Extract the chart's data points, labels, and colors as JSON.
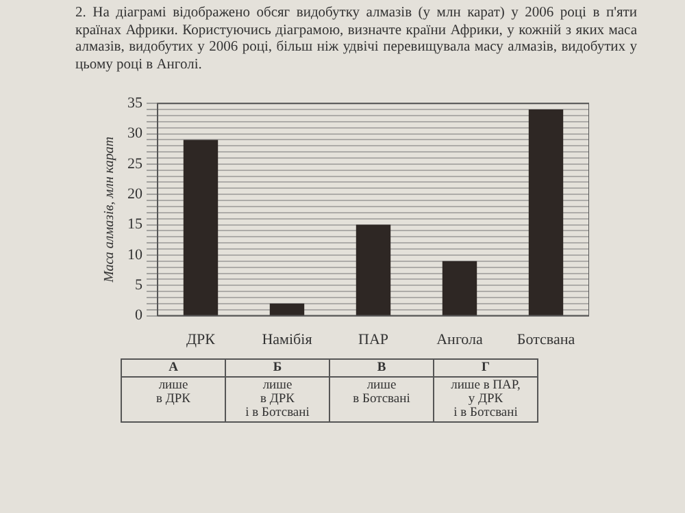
{
  "chart_data": {
    "type": "bar",
    "title": "2. На діаграмі відображено обсяг видобутку алмазів (у млн карат) у 2006 році в п'яти країнах Африки. Користуючись діаграмою, визначте країни Африки, у кожній з яких маса алмазів, видобутих у 2006 році, більш ніж удвічі перевищувала масу алмазів, видобутих у цьому році в Анголі.",
    "ylabel": "Маса алмазів, млн карат",
    "categories": [
      "ДРК",
      "Намібія",
      "ПАР",
      "Ангола",
      "Ботсвана"
    ],
    "values": [
      29,
      2,
      15,
      9,
      34
    ],
    "color": "#2e2724",
    "ylim": [
      0,
      35
    ],
    "yticks": [
      0,
      {
        "value": 1,
        "label": null
      },
      {
        "value": 2,
        "label": null
      },
      {
        "value": 3,
        "label": null
      },
      {
        "value": 4,
        "label": null
      },
      5,
      {
        "value": 6,
        "label": null
      },
      {
        "value": 7,
        "label": null
      },
      {
        "value": 8,
        "label": null
      },
      {
        "value": 9,
        "label": null
      },
      10,
      {
        "value": 11,
        "label": null
      },
      {
        "value": 12,
        "label": null
      },
      {
        "value": 13,
        "label": null
      },
      {
        "value": 14,
        "label": null
      },
      15,
      {
        "value": 16,
        "label": null
      },
      {
        "value": 17,
        "label": null
      },
      {
        "value": 18,
        "label": null
      },
      {
        "value": 19,
        "label": null
      },
      20,
      {
        "value": 21,
        "label": null
      },
      {
        "value": 22,
        "label": null
      },
      {
        "value": 23,
        "label": null
      },
      {
        "value": 24,
        "label": null
      },
      25,
      {
        "value": 26,
        "label": null
      },
      {
        "value": 27,
        "label": null
      },
      {
        "value": 28,
        "label": null
      },
      {
        "value": 29,
        "label": null
      },
      30,
      {
        "value": 31,
        "label": null
      },
      {
        "value": 32,
        "label": null
      },
      {
        "value": 33,
        "label": null
      },
      {
        "value": 34,
        "label": null
      },
      35
    ],
    "grid": "y",
    "legend": false,
    "annotations": [
      "А\nлише\nв ДРК",
      "Б\nлише\nв ДРК\nі в Ботсвані",
      "В\nлише\nв Ботсвані",
      "Г\nлише в ПАР,\nу ДРК\nі в Ботсвані"
    ]
  }
}
